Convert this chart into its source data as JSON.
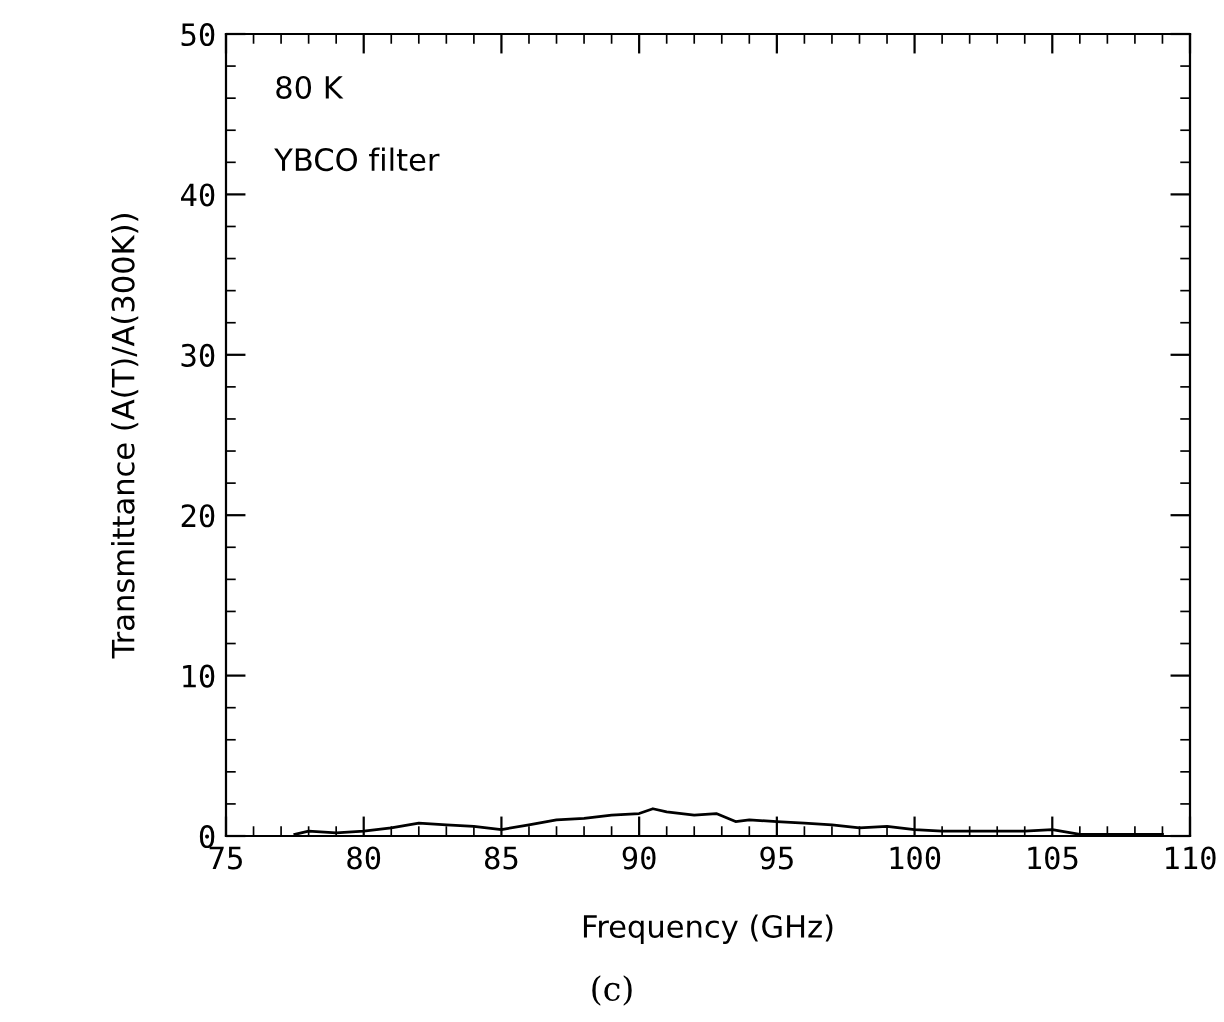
{
  "chart_data": {
    "type": "line",
    "xlabel": "Frequency (GHz)",
    "ylabel": "Transmittance (A(T)/A(300K))",
    "annotations": [
      "80 K",
      "YBCO filter",
      "(c)"
    ],
    "xlim": [
      75,
      110
    ],
    "xticks": [
      75,
      80,
      85,
      90,
      95,
      100,
      105,
      110
    ],
    "ylim": [
      0,
      50
    ],
    "yticks": [
      0,
      10,
      20,
      30,
      40,
      50
    ],
    "grid": false,
    "legend": false,
    "marker": "none",
    "line_style": "solid",
    "series": [
      {
        "color": "#000000",
        "x": [
          77.5,
          78,
          79,
          80,
          81,
          82,
          83,
          84,
          85,
          86,
          87,
          88,
          89,
          90,
          90.5,
          91,
          92,
          92.8,
          93.5,
          94,
          95,
          96,
          97,
          98,
          99,
          100,
          101,
          102,
          103,
          104,
          105,
          106,
          107,
          108,
          109
        ],
        "values": [
          0.1,
          0.3,
          0.2,
          0.3,
          0.5,
          0.8,
          0.7,
          0.6,
          0.4,
          0.7,
          1.0,
          1.1,
          1.3,
          1.4,
          1.7,
          1.5,
          1.3,
          1.4,
          0.9,
          1.0,
          0.9,
          0.8,
          0.7,
          0.5,
          0.6,
          0.4,
          0.3,
          0.3,
          0.3,
          0.3,
          0.4,
          0.1,
          0.1,
          0.1,
          0.1
        ]
      }
    ]
  }
}
